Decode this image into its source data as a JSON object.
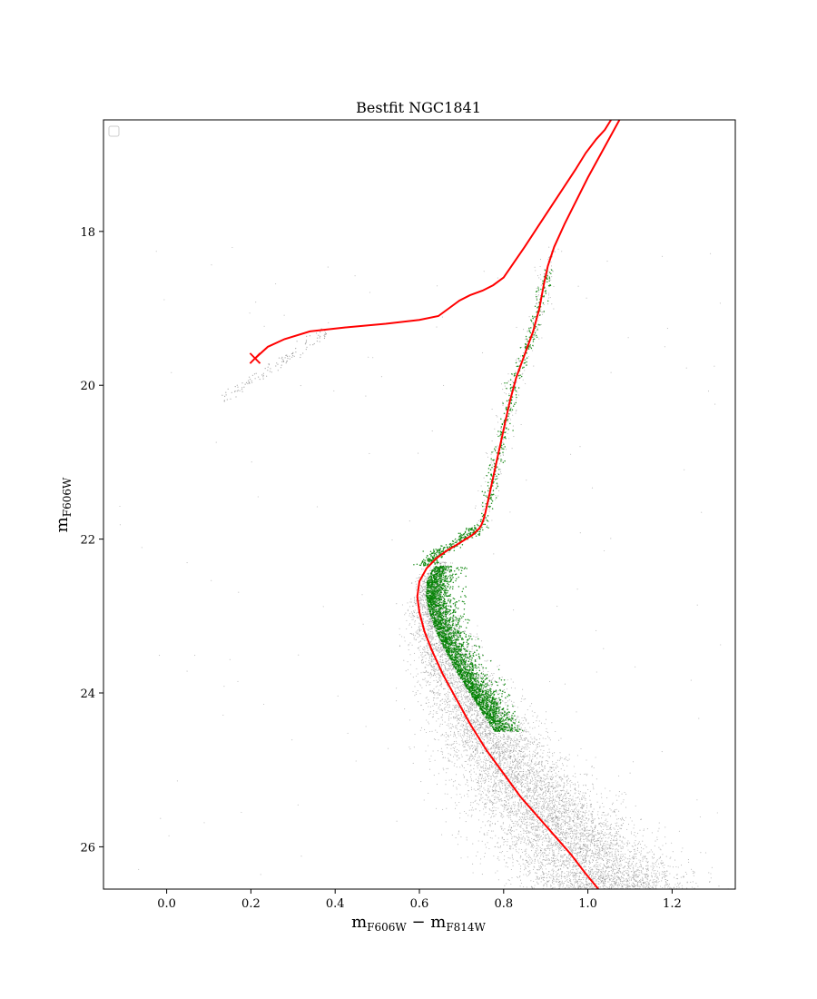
{
  "chart_data": {
    "type": "scatter",
    "title": "Bestfit NGC1841",
    "xlabel": {
      "main": "m",
      "sub1": "F606W",
      "mid": " − m",
      "sub2": "F814W"
    },
    "ylabel": {
      "main": "m",
      "sub": "F606W"
    },
    "xlim": [
      -0.15,
      1.35
    ],
    "ylim": [
      26.55,
      16.55
    ],
    "y_inverted": true,
    "xticks": [
      0.0,
      0.2,
      0.4,
      0.6,
      0.8,
      1.0,
      1.2
    ],
    "xtick_labels": [
      "0.0",
      "0.2",
      "0.4",
      "0.6",
      "0.8",
      "1.0",
      "1.2"
    ],
    "yticks": [
      18,
      20,
      22,
      24,
      26
    ],
    "ytick_labels": [
      "18",
      "20",
      "22",
      "24",
      "26"
    ],
    "legend": {
      "placement": "top-left",
      "entries": []
    },
    "colors": {
      "observed": "#808080",
      "fit_region": "#008000",
      "isochrone": "#ff0000"
    },
    "series": [
      {
        "kind": "isochrone",
        "color": "#ff0000",
        "x": [
          1.075,
          1.045,
          1.0,
          0.945,
          0.92,
          0.905,
          0.895,
          0.885,
          0.87,
          0.85,
          0.83,
          0.815,
          0.805,
          0.795,
          0.785,
          0.775,
          0.765,
          0.757,
          0.752,
          0.747,
          0.742,
          0.735,
          0.725,
          0.71,
          0.69,
          0.665,
          0.64,
          0.617,
          0.6,
          0.595,
          0.6,
          0.612,
          0.63,
          0.655,
          0.685,
          0.72,
          0.76,
          0.8,
          0.84,
          0.88,
          0.92,
          0.96,
          0.995,
          1.025
        ],
        "y": [
          16.55,
          16.85,
          17.3,
          17.9,
          18.2,
          18.45,
          18.7,
          19.0,
          19.3,
          19.6,
          19.9,
          20.2,
          20.45,
          20.7,
          20.95,
          21.2,
          21.45,
          21.65,
          21.75,
          21.82,
          21.86,
          21.9,
          21.95,
          22.0,
          22.07,
          22.15,
          22.25,
          22.38,
          22.55,
          22.75,
          22.95,
          23.2,
          23.45,
          23.75,
          24.05,
          24.4,
          24.75,
          25.05,
          25.35,
          25.6,
          25.85,
          26.1,
          26.35,
          26.55
        ]
      },
      {
        "kind": "isochrone_upper",
        "color": "#ff0000",
        "x": [
          0.21,
          0.24,
          0.28,
          0.34,
          0.42,
          0.52,
          0.6,
          0.645,
          0.67,
          0.695,
          0.72,
          0.75,
          0.775,
          0.8,
          0.825,
          0.85,
          0.88,
          0.91,
          0.94,
          0.97,
          0.995,
          1.02,
          1.04,
          1.055
        ],
        "y": [
          19.65,
          19.5,
          19.4,
          19.3,
          19.25,
          19.2,
          19.15,
          19.1,
          19.0,
          18.9,
          18.83,
          18.77,
          18.7,
          18.6,
          18.4,
          18.2,
          17.95,
          17.7,
          17.45,
          17.2,
          16.98,
          16.8,
          16.68,
          16.55
        ]
      }
    ],
    "marker": {
      "label": "×",
      "x": 0.21,
      "y": 19.65,
      "color": "#ff0000"
    },
    "observed_points_note_count": 9000,
    "fit_region_count": 3600
  }
}
